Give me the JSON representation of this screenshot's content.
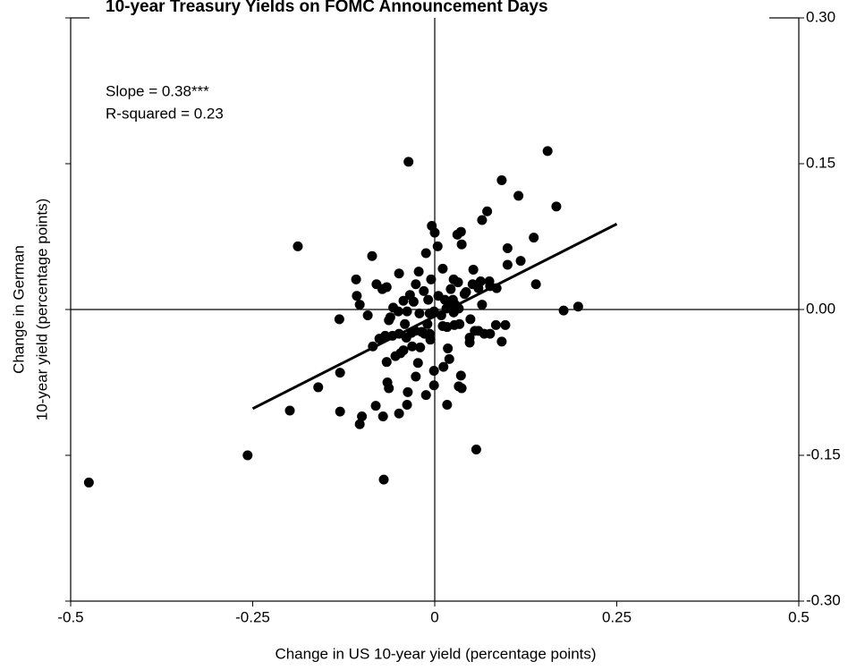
{
  "chart_data": {
    "type": "scatter",
    "title": "10-year Treasury Yields on FOMC Announcement Days",
    "x_label": "Change in US 10-year yield (percentage points)",
    "y_label": [
      "Change in German",
      "10-year yield (percentage points)"
    ],
    "annotations": [
      "Slope = 0.38***",
      "R-squared = 0.23"
    ],
    "xlim": [
      -0.5,
      0.5
    ],
    "xticks": [
      -0.5,
      -0.25,
      0,
      0.25,
      0.5
    ],
    "ylim": [
      -0.3,
      0.3
    ],
    "yticks": [
      {
        "value": 0.3,
        "label": "0.30"
      },
      0.15,
      {
        "value": 0,
        "label": "0.00"
      },
      -0.15,
      {
        "value": -0.3,
        "label": "-0.30"
      }
    ],
    "color": "#000000",
    "fit_line": {
      "x": [
        -0.25,
        0.25
      ],
      "y": [
        -0.102,
        0.088
      ]
    },
    "x": [
      -0.475,
      -0.257,
      -0.199,
      -0.188,
      -0.16,
      -0.131,
      -0.13,
      -0.13,
      -0.107,
      -0.103,
      -0.103,
      -0.1,
      -0.108,
      -0.092,
      -0.086,
      -0.085,
      -0.08,
      -0.081,
      -0.076,
      -0.072,
      -0.071,
      -0.07,
      -0.068,
      -0.066,
      -0.066,
      -0.065,
      -0.063,
      -0.063,
      -0.061,
      -0.058,
      -0.057,
      -0.054,
      -0.05,
      -0.049,
      -0.049,
      -0.049,
      -0.047,
      -0.043,
      -0.043,
      -0.041,
      -0.039,
      -0.038,
      -0.037,
      -0.038,
      -0.036,
      -0.034,
      -0.032,
      -0.031,
      -0.029,
      -0.027,
      -0.026,
      -0.026,
      -0.023,
      -0.022,
      -0.021,
      -0.02,
      -0.018,
      -0.015,
      -0.014,
      -0.012,
      -0.012,
      -0.01,
      -0.009,
      -0.007,
      -0.007,
      -0.006,
      -0.005,
      -0.004,
      -0.001,
      -0.001,
      -0.001,
      0.0,
      0.004,
      0.005,
      0.009,
      0.011,
      0.011,
      0.012,
      0.014,
      0.016,
      0.017,
      0.017,
      0.018,
      0.02,
      0.022,
      0.023,
      0.025,
      0.026,
      0.026,
      0.027,
      0.028,
      0.031,
      0.032,
      0.033,
      0.034,
      0.036,
      0.036,
      0.037,
      0.033,
      0.037,
      0.041,
      0.043,
      0.048,
      0.048,
      0.049,
      0.052,
      0.053,
      0.055,
      0.057,
      0.06,
      0.06,
      0.063,
      0.065,
      0.065,
      0.068,
      0.072,
      0.075,
      0.076,
      0.076,
      0.084,
      0.085,
      0.092,
      0.092,
      0.097,
      0.1,
      0.1,
      0.115,
      0.118,
      0.136,
      0.139,
      0.155,
      0.167,
      0.177,
      0.197
    ],
    "values": [
      -0.178,
      -0.15,
      -0.104,
      0.065,
      -0.08,
      -0.01,
      -0.065,
      -0.105,
      0.014,
      0.005,
      -0.118,
      -0.11,
      0.031,
      -0.006,
      0.055,
      -0.038,
      0.026,
      -0.099,
      -0.03,
      0.021,
      -0.11,
      -0.175,
      -0.027,
      0.023,
      -0.054,
      -0.075,
      -0.011,
      -0.081,
      -0.008,
      -0.027,
      0.002,
      -0.048,
      -0.002,
      0.037,
      -0.025,
      -0.107,
      -0.045,
      0.009,
      -0.042,
      -0.015,
      -0.029,
      -0.002,
      -0.085,
      -0.098,
      0.152,
      0.015,
      -0.024,
      -0.038,
      0.008,
      -0.022,
      0.026,
      -0.069,
      -0.055,
      0.039,
      -0.004,
      -0.039,
      -0.023,
      0.019,
      -0.025,
      -0.088,
      0.058,
      -0.015,
      0.01,
      -0.025,
      -0.004,
      -0.031,
      0.031,
      0.086,
      -0.002,
      -0.078,
      -0.063,
      0.079,
      0.065,
      0.014,
      -0.006,
      0.042,
      -0.017,
      -0.059,
      0.01,
      0.001,
      -0.098,
      -0.018,
      -0.04,
      -0.051,
      0.021,
      0.004,
      0.01,
      0.031,
      -0.003,
      -0.016,
      0.005,
      0.077,
      0.028,
      0.001,
      -0.015,
      0.08,
      -0.068,
      0.067,
      -0.079,
      -0.081,
      0.016,
      0.018,
      -0.029,
      -0.034,
      -0.01,
      0.026,
      0.041,
      -0.022,
      -0.144,
      -0.022,
      0.022,
      0.029,
      0.005,
      0.092,
      -0.025,
      0.101,
      0.029,
      0.024,
      -0.025,
      -0.016,
      0.022,
      -0.033,
      0.133,
      -0.016,
      0.063,
      0.046,
      0.117,
      0.05,
      0.074,
      0.026,
      0.163,
      0.106,
      -0.001,
      0.003
    ]
  }
}
